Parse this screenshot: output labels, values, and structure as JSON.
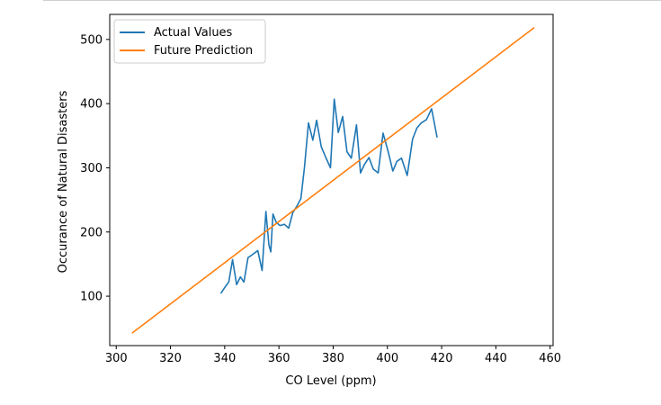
{
  "chart_data": {
    "type": "line",
    "title": "",
    "xlabel": "CO Level (ppm)",
    "ylabel": "Occurance of Natural Disasters",
    "xlim": [
      297.6,
      461.1
    ],
    "ylim": [
      23,
      539
    ],
    "xticks": [
      300,
      320,
      340,
      360,
      380,
      400,
      420,
      440,
      460
    ],
    "yticks": [
      100,
      200,
      300,
      400,
      500
    ],
    "grid": false,
    "legend_position": "top-left",
    "series": [
      {
        "name": "Actual Values",
        "color": "#1f77b4",
        "x": [
          338.7,
          340.1,
          341.5,
          342.9,
          344.4,
          345.8,
          347.1,
          348.6,
          350.3,
          352.2,
          353.8,
          355.2,
          356.3,
          357.0,
          357.8,
          359.0,
          360.4,
          362.0,
          363.6,
          365.1,
          366.6,
          368.1,
          369.4,
          370.9,
          372.5,
          373.9,
          375.6,
          377.4,
          379.0,
          380.4,
          381.9,
          383.5,
          385.1,
          386.7,
          388.6,
          390.1,
          391.5,
          393.2,
          394.8,
          396.6,
          398.4,
          400.3,
          402.0,
          403.5,
          405.2,
          407.3,
          409.3,
          410.9,
          412.5,
          414.4,
          416.3,
          418.3
        ],
        "y": [
          105,
          114,
          122,
          157,
          118,
          130,
          122,
          160,
          165,
          171,
          140,
          232,
          180,
          169,
          228,
          215,
          210,
          212,
          206,
          230,
          240,
          252,
          300,
          370,
          343,
          374,
          333,
          315,
          300,
          407,
          355,
          380,
          325,
          315,
          367,
          292,
          305,
          316,
          298,
          292,
          354,
          325,
          295,
          310,
          315,
          288,
          345,
          362,
          370,
          375,
          392,
          348
        ]
      },
      {
        "name": "Future Prediction",
        "color": "#ff7f0e",
        "x": [
          306.0,
          454.0
        ],
        "y": [
          43,
          518
        ]
      }
    ]
  }
}
